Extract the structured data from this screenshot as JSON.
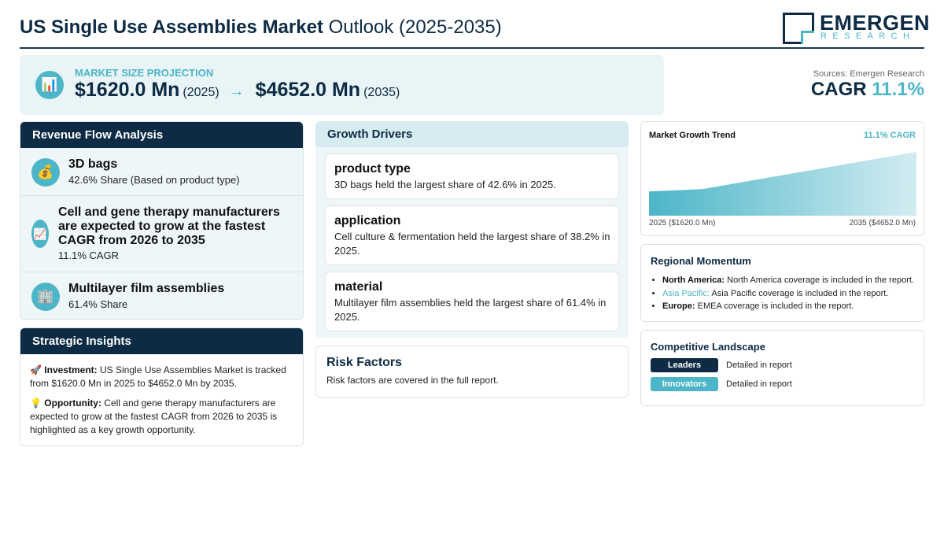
{
  "header": {
    "title_bold": "US Single Use Assemblies Market",
    "title_rest": "Outlook (2025-2035)",
    "logo_name": "EMERGEN",
    "logo_sub": "RESEARCH"
  },
  "projection": {
    "label": "MARKET SIZE PROJECTION",
    "icon": "bar-chart-icon",
    "start_value": "$1620.0 Mn",
    "start_year": "(2025)",
    "arrow": "→",
    "end_value": "$4652.0 Mn",
    "end_year": "(2035)"
  },
  "source": {
    "text": "Sources: Emergen Research",
    "cagr_label": "CAGR",
    "cagr_value": "11.1%"
  },
  "revenue": {
    "title": "Revenue Flow Analysis",
    "items": [
      {
        "icon": "money-bag-icon",
        "glyph": "💰",
        "title": "3D bags",
        "sub": "42.6% Share (Based on product type)"
      },
      {
        "icon": "chart-up-icon",
        "glyph": "📈",
        "title": "Cell and gene therapy manufacturers are expected to grow at the fastest CAGR from 2026 to 2035",
        "sub": "11.1% CAGR"
      },
      {
        "icon": "building-icon",
        "glyph": "🏢",
        "title": "Multilayer film assemblies",
        "sub": "61.4% Share"
      }
    ]
  },
  "strategic": {
    "title": "Strategic Insights",
    "investment_icon": "🚀",
    "investment_label": "Investment:",
    "investment_text": "US Single Use Assemblies Market is tracked from $1620.0 Mn in 2025 to $4652.0 Mn by 2035.",
    "opportunity_icon": "💡",
    "opportunity_label": "Opportunity:",
    "opportunity_text": "Cell and gene therapy manufacturers are expected to grow at the fastest CAGR from 2026 to 2035 is highlighted as a key growth opportunity."
  },
  "drivers": {
    "title": "Growth Drivers",
    "items": [
      {
        "title": "product type",
        "desc": "3D bags held the largest share of 42.6% in 2025."
      },
      {
        "title": "application",
        "desc": "Cell culture & fermentation held the largest share of 38.2% in 2025."
      },
      {
        "title": "material",
        "desc": "Multilayer film assemblies held the largest share of 61.4% in 2025."
      }
    ]
  },
  "risk": {
    "title": "Risk Factors",
    "desc": "Risk factors are covered in the full report."
  },
  "trend": {
    "title": "Market Growth Trend",
    "cagr": "11.1% CAGR",
    "start_label": "2025 ($1620.0 Mn)",
    "end_label": "2035 ($4652.0 Mn)",
    "color": "#4cb5c8"
  },
  "chart_data": {
    "type": "area",
    "x": [
      2025,
      2035
    ],
    "values": [
      1620.0,
      4652.0
    ],
    "title": "Market Growth Trend",
    "xlabel": "",
    "ylabel": ""
  },
  "regional": {
    "title": "Regional Momentum",
    "items": [
      {
        "name": "North America:",
        "text": "North America coverage is included in the report."
      },
      {
        "name": "Asia Pacific:",
        "text": "Asia Pacific coverage is included in the report."
      },
      {
        "name": "Europe:",
        "text": "EMEA coverage is included in the report."
      }
    ]
  },
  "competitive": {
    "title": "Competitive Landscape",
    "rows": [
      {
        "label": "Leaders",
        "desc": "Detailed in report",
        "color": "#0d2b44"
      },
      {
        "label": "Innovators",
        "desc": "Detailed in report",
        "color": "#4cb5c8"
      }
    ]
  }
}
